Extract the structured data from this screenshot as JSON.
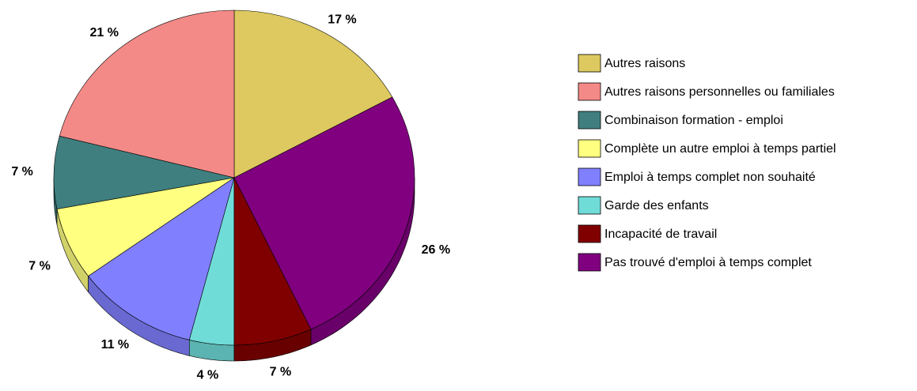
{
  "chart_data": {
    "type": "pie",
    "categories": [
      "Autres raisons",
      "Autres raisons personnelles ou familiales",
      "Combinaison formation - emploi",
      "Complète un autre emploi à temps partiel",
      "Emploi à temps complet non souhaité",
      "Garde des enfants",
      "Incapacité de travail",
      "Pas trouvé d'emploi à temps complet"
    ],
    "values": [
      17,
      21,
      7,
      7,
      11,
      4,
      7,
      26
    ],
    "value_labels": [
      "17 %",
      "21 %",
      "7 %",
      "7 %",
      "11 %",
      "4 %",
      "7 %",
      "26 %"
    ],
    "colors": [
      "#ddc95f",
      "#f48a87",
      "#3f7f7f",
      "#ffff80",
      "#8080ff",
      "#70dcd8",
      "#800000",
      "#800080"
    ],
    "legend": "right"
  }
}
